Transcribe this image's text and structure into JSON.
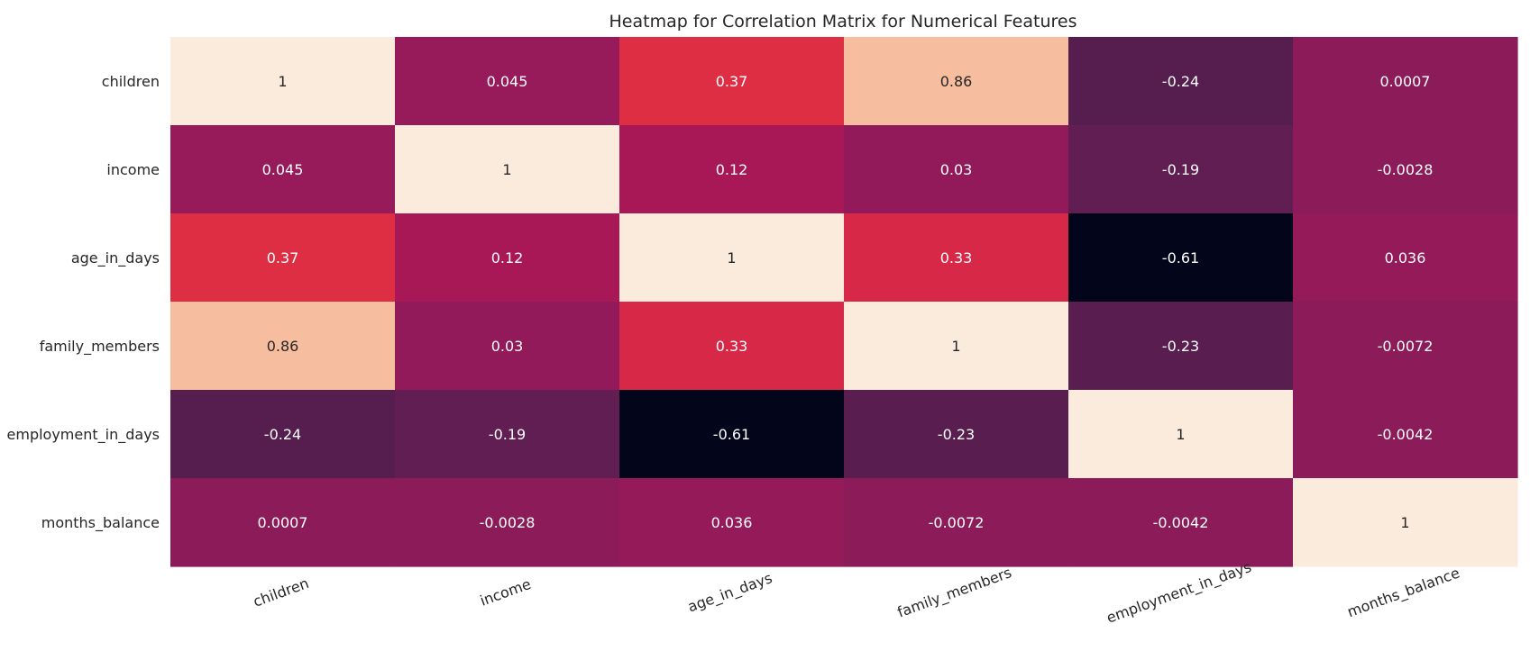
{
  "chart_data": {
    "type": "heatmap",
    "title": "Heatmap for Correlation Matrix for Numerical Features",
    "xlabel": "",
    "ylabel": "",
    "rows": [
      "children",
      "income",
      "age_in_days",
      "family_members",
      "employment_in_days",
      "months_balance"
    ],
    "columns": [
      "children",
      "income",
      "age_in_days",
      "family_members",
      "employment_in_days",
      "months_balance"
    ],
    "values": [
      [
        1,
        0.045,
        0.37,
        0.86,
        -0.24,
        0.0007
      ],
      [
        0.045,
        1,
        0.12,
        0.03,
        -0.19,
        -0.0028
      ],
      [
        0.37,
        0.12,
        1,
        0.33,
        -0.61,
        0.036
      ],
      [
        0.86,
        0.03,
        0.33,
        1,
        -0.23,
        -0.0072
      ],
      [
        -0.24,
        -0.19,
        -0.61,
        -0.23,
        1,
        -0.0042
      ],
      [
        0.0007,
        -0.0028,
        0.036,
        -0.0072,
        -0.0042,
        1
      ]
    ],
    "annotations": [
      [
        "1",
        "0.045",
        "0.37",
        "0.86",
        "-0.24",
        "0.0007"
      ],
      [
        "0.045",
        "1",
        "0.12",
        "0.03",
        "-0.19",
        "-0.0028"
      ],
      [
        "0.37",
        "0.12",
        "1",
        "0.33",
        "-0.61",
        "0.036"
      ],
      [
        "0.86",
        "0.03",
        "0.33",
        "1",
        "-0.23",
        "-0.0072"
      ],
      [
        "-0.24",
        "-0.19",
        "-0.61",
        "-0.23",
        "1",
        "-0.0042"
      ],
      [
        "0.0007",
        "-0.0028",
        "0.036",
        "-0.0072",
        "-0.0042",
        "1"
      ]
    ],
    "vmin": -0.61,
    "vmax": 1,
    "colormap": "rocket",
    "colorbar": false,
    "grid": false
  }
}
